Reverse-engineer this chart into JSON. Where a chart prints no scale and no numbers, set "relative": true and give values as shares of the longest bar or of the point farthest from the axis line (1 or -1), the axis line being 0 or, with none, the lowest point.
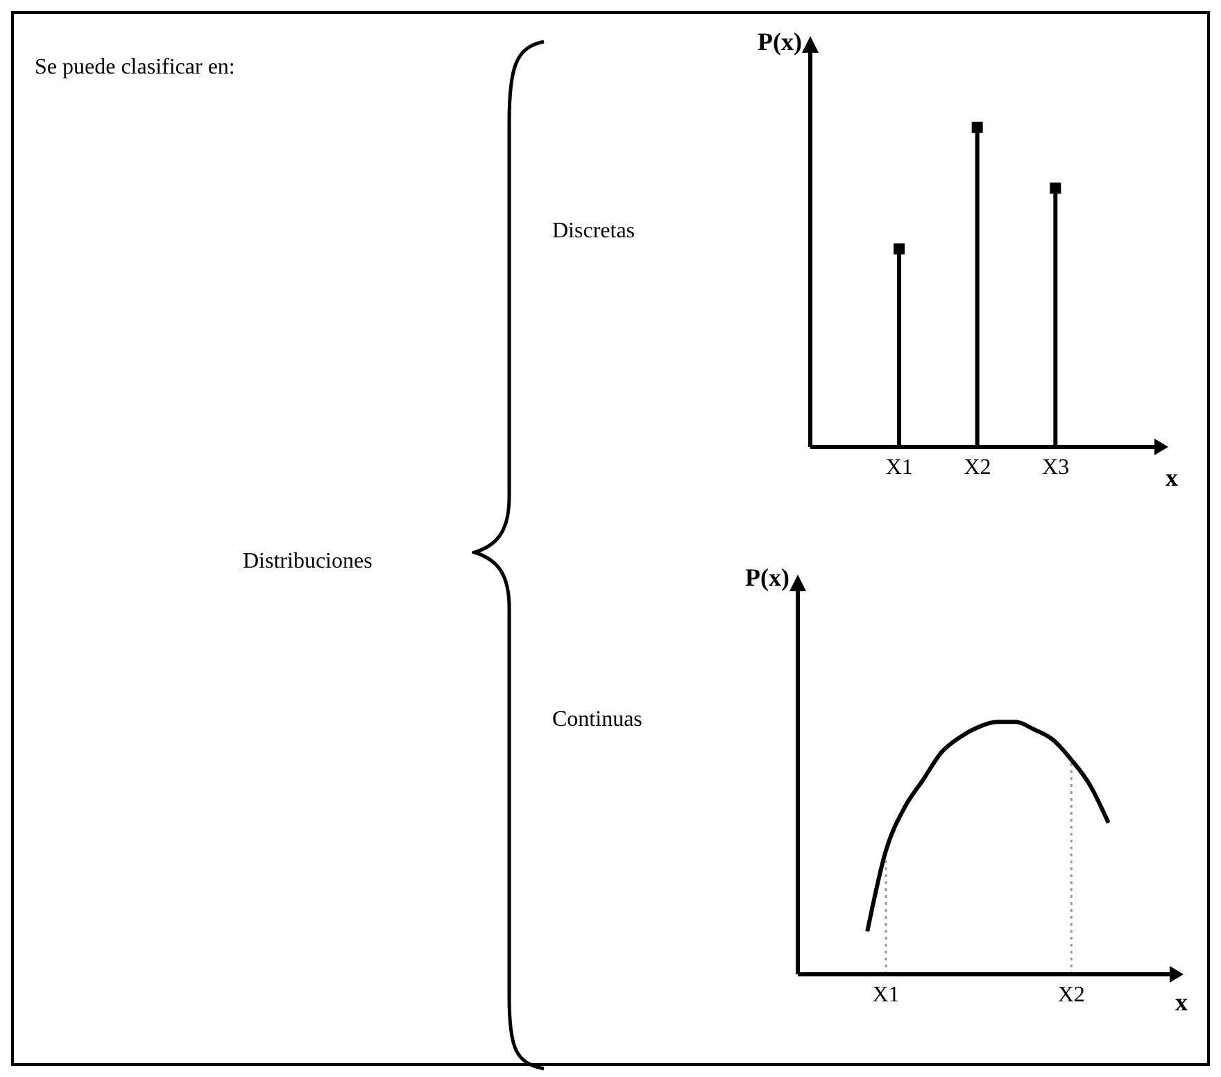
{
  "chart_data": [
    {
      "type": "lollipop",
      "xlabel": "x",
      "ylabel": "P(x)",
      "categories": [
        "X1",
        "X2",
        "X3"
      ],
      "values": [
        0.62,
        1,
        0.81
      ],
      "relative": true,
      "color": "#000000",
      "marker": "square",
      "annotations": [
        "Se puede clasificar en:",
        "Distribuciones",
        "Discretas"
      ]
    },
    {
      "type": "line",
      "annotations": [
        "Continuas"
      ],
      "xlabel": "x",
      "ylabel": "P(x)",
      "categories": [
        null,
        null,
        null,
        null,
        "X1",
        null,
        null,
        null,
        null,
        null,
        null,
        null,
        null,
        null,
        "X2",
        null,
        null,
        null,
        null,
        null
      ],
      "values": [
        null,
        null,
        null,
        0.17,
        0.49,
        0.66,
        0.77,
        0.88,
        0.94,
        0.98,
        1,
        1,
        0.97,
        0.93,
        0.85,
        0.75,
        0.6,
        null,
        null,
        null
      ],
      "relative": true,
      "color": "#000000",
      "marker": "none",
      "ref_lines": [
        {
          "axis": "x",
          "value": "X1",
          "line_style": "dotted",
          "color": "#999999"
        },
        {
          "axis": "x",
          "value": "X2",
          "line_style": "dotted",
          "color": "#999999"
        }
      ]
    }
  ]
}
